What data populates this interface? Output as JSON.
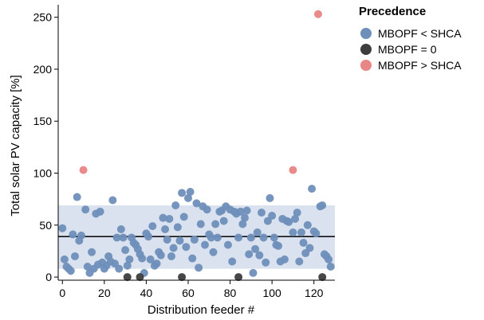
{
  "chart_data": {
    "type": "scatter",
    "xlabel": "Distribution feeder #",
    "ylabel": "Total solar PV capacity [%]",
    "xlim": [
      -2,
      130
    ],
    "ylim": [
      -3,
      262
    ],
    "xticks": [
      0,
      20,
      40,
      60,
      80,
      100,
      120
    ],
    "yticks": [
      0,
      50,
      100,
      150,
      200,
      250
    ],
    "grid": false,
    "band": {
      "low": 8,
      "high": 69,
      "color": "#d9e2ee"
    },
    "mean_line": {
      "y": 39,
      "color": "#111111"
    },
    "legend": {
      "title": "Precedence",
      "placement": "right"
    },
    "series": [
      {
        "name": "MBOPF < SHCA",
        "color": "#6f8fbb",
        "points": [
          [
            0,
            47
          ],
          [
            1,
            17
          ],
          [
            2,
            10
          ],
          [
            3,
            8
          ],
          [
            4,
            6
          ],
          [
            5,
            41
          ],
          [
            6,
            20
          ],
          [
            7,
            77
          ],
          [
            8,
            35
          ],
          [
            9,
            40
          ],
          [
            11,
            65
          ],
          [
            12,
            10
          ],
          [
            13,
            4
          ],
          [
            14,
            24
          ],
          [
            15,
            8
          ],
          [
            16,
            61
          ],
          [
            17,
            12
          ],
          [
            18,
            63
          ],
          [
            19,
            14
          ],
          [
            20,
            8
          ],
          [
            21,
            11
          ],
          [
            22,
            20
          ],
          [
            23,
            15
          ],
          [
            24,
            74
          ],
          [
            25,
            13
          ],
          [
            26,
            38
          ],
          [
            27,
            8
          ],
          [
            28,
            46
          ],
          [
            29,
            38
          ],
          [
            30,
            26
          ],
          [
            31,
            11
          ],
          [
            32,
            17
          ],
          [
            33,
            38
          ],
          [
            34,
            33
          ],
          [
            35,
            31
          ],
          [
            36,
            27
          ],
          [
            37,
            22
          ],
          [
            38,
            18
          ],
          [
            39,
            4
          ],
          [
            40,
            42
          ],
          [
            41,
            39
          ],
          [
            42,
            17
          ],
          [
            43,
            49
          ],
          [
            44,
            11
          ],
          [
            45,
            13
          ],
          [
            46,
            24
          ],
          [
            47,
            21
          ],
          [
            48,
            57
          ],
          [
            49,
            46
          ],
          [
            50,
            36
          ],
          [
            51,
            56
          ],
          [
            52,
            20
          ],
          [
            53,
            28
          ],
          [
            54,
            69
          ],
          [
            55,
            48
          ],
          [
            56,
            35
          ],
          [
            57,
            81
          ],
          [
            58,
            58
          ],
          [
            59,
            29
          ],
          [
            60,
            76
          ],
          [
            61,
            82
          ],
          [
            62,
            18
          ],
          [
            63,
            36
          ],
          [
            64,
            71
          ],
          [
            65,
            9
          ],
          [
            66,
            51
          ],
          [
            67,
            68
          ],
          [
            68,
            31
          ],
          [
            69,
            65
          ],
          [
            70,
            41
          ],
          [
            71,
            38
          ],
          [
            72,
            24
          ],
          [
            73,
            51
          ],
          [
            74,
            38
          ],
          [
            75,
            63
          ],
          [
            76,
            64
          ],
          [
            77,
            54
          ],
          [
            78,
            68
          ],
          [
            79,
            31
          ],
          [
            80,
            65
          ],
          [
            81,
            15
          ],
          [
            82,
            63
          ],
          [
            83,
            61
          ],
          [
            84,
            38
          ],
          [
            85,
            63
          ],
          [
            86,
            51
          ],
          [
            87,
            57
          ],
          [
            88,
            64
          ],
          [
            89,
            22
          ],
          [
            90,
            38
          ],
          [
            91,
            4
          ],
          [
            92,
            27
          ],
          [
            93,
            43
          ],
          [
            94,
            21
          ],
          [
            95,
            62
          ],
          [
            96,
            38
          ],
          [
            97,
            14
          ],
          [
            98,
            54
          ],
          [
            99,
            76
          ],
          [
            100,
            59
          ],
          [
            101,
            38
          ],
          [
            102,
            31
          ],
          [
            103,
            30
          ],
          [
            104,
            15
          ],
          [
            105,
            56
          ],
          [
            106,
            17
          ],
          [
            107,
            54
          ],
          [
            108,
            53
          ],
          [
            110,
            43
          ],
          [
            111,
            56
          ],
          [
            112,
            62
          ],
          [
            113,
            15
          ],
          [
            114,
            43
          ],
          [
            115,
            33
          ],
          [
            116,
            23
          ],
          [
            117,
            50
          ],
          [
            118,
            28
          ],
          [
            119,
            85
          ],
          [
            120,
            44
          ],
          [
            121,
            42
          ],
          [
            123,
            68
          ],
          [
            124,
            69
          ],
          [
            125,
            22
          ],
          [
            126,
            20
          ],
          [
            127,
            17
          ],
          [
            128,
            10
          ]
        ]
      },
      {
        "name": "MBOPF = 0",
        "color": "#3d3d3d",
        "points": [
          [
            31,
            0
          ],
          [
            37,
            0
          ],
          [
            57,
            0
          ],
          [
            84,
            0
          ],
          [
            124,
            0
          ]
        ]
      },
      {
        "name": "MBOPF > SHCA",
        "color": "#e88585",
        "points": [
          [
            10,
            103
          ],
          [
            110,
            103
          ],
          [
            122,
            253
          ]
        ]
      }
    ]
  }
}
